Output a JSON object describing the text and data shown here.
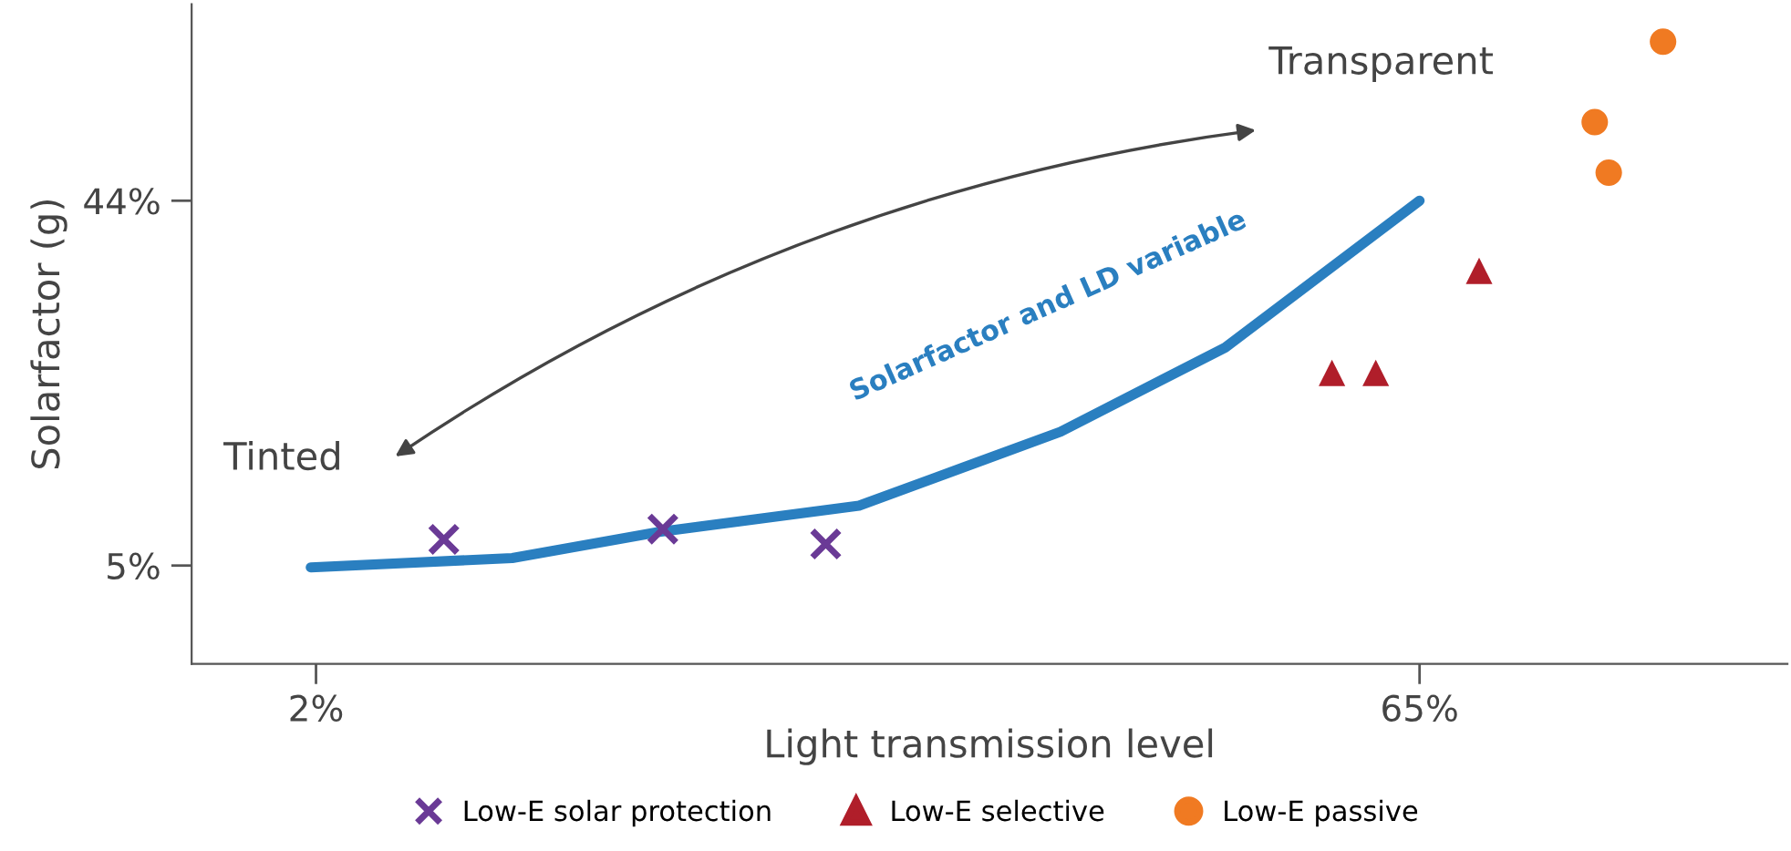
{
  "chart_data": {
    "type": "line",
    "xlabel": "Light transmission level",
    "ylabel": "Solarfactor (g)",
    "xlim": [
      -5.1,
      86
    ],
    "ylim": [
      -5.5,
      65
    ],
    "xticks": [
      {
        "value": 2,
        "label": "2%"
      },
      {
        "value": 65,
        "label": "65%"
      }
    ],
    "yticks": [
      {
        "value": 5,
        "label": "5%"
      },
      {
        "value": 44,
        "label": "44%"
      }
    ],
    "grid": false,
    "legend": "bottom",
    "annotations": [
      "Transparent",
      "Tinted",
      "Solarfactor and LD variable"
    ],
    "series": [
      {
        "color": "#2a7fc0",
        "marker": "none",
        "line_style": "solid",
        "x": [
          1.7,
          13.2,
          21.6,
          33.0,
          44.5,
          53.9,
          65
        ],
        "values": [
          4.8,
          5.8,
          8.6,
          11.4,
          19.3,
          28.3,
          44
        ]
      },
      {
        "type": "scatter",
        "name": "Low-E solar protection",
        "color": "#6a3a96",
        "marker": "cross",
        "x": [
          9.3,
          21.8,
          31.1
        ],
        "values": [
          7.8,
          8.9,
          7.3
        ]
      },
      {
        "type": "scatter",
        "name": "Low-E selective",
        "color": "#b01e2a",
        "marker": "triangle",
        "x": [
          60.0,
          62.5,
          68.4
        ],
        "values": [
          25.6,
          25.6,
          36.5
        ]
      },
      {
        "type": "scatter",
        "name": "Low-E passive",
        "color": "#f07a22",
        "marker": "circle",
        "x": [
          78.9,
          75.0,
          75.8
        ],
        "values": [
          61.0,
          52.4,
          47.0
        ]
      }
    ]
  }
}
